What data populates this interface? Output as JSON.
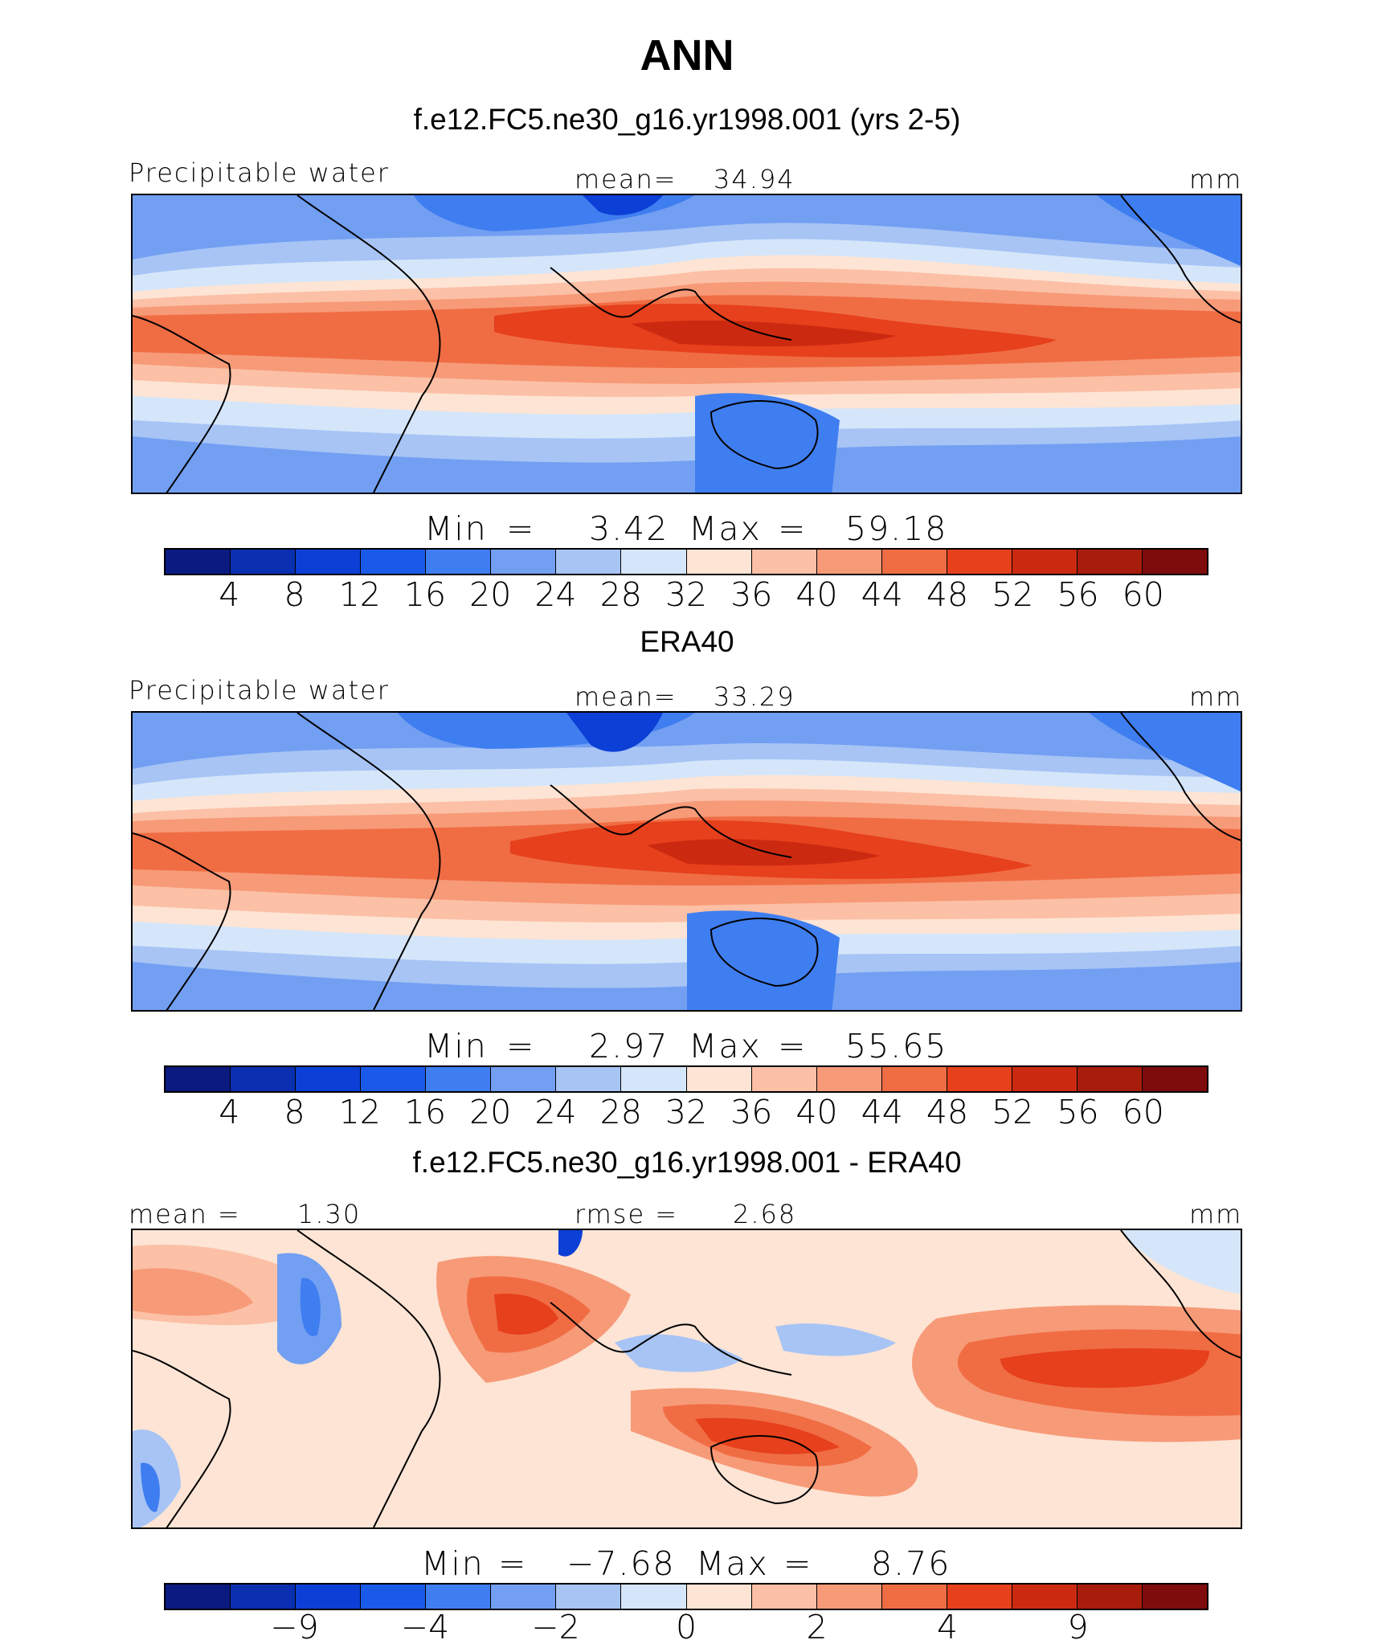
{
  "title": "ANN",
  "colors": {
    "full": [
      "#0a1a80",
      "#0a2fb0",
      "#0c3fd6",
      "#1a5ae8",
      "#3f7ef0",
      "#729ff2",
      "#a7c4f5",
      "#d5e6fa",
      "#fde4d4",
      "#fbc0a6",
      "#f79a78",
      "#f06d44",
      "#e6401c",
      "#cc2a10",
      "#a81c0c",
      "#7e0c0c"
    ],
    "diff": [
      "#0a1a80",
      "#0a2fb0",
      "#0c3fd6",
      "#1a5ae8",
      "#3f7ef0",
      "#729ff2",
      "#a7c4f5",
      "#d5e6fa",
      "#fde4d4",
      "#fbc0a6",
      "#f79a78",
      "#f06d44",
      "#e6401c",
      "#cc2a10",
      "#a81c0c",
      "#7e0c0c"
    ]
  },
  "panels": [
    {
      "title": "f.e12.FC5.ne30_g16.yr1998.001 (yrs 2-5)",
      "left_label": "Precipitable water",
      "mean_label": "mean=",
      "mean_value": "34.94",
      "units": "mm",
      "min_label": "Min",
      "min_value": "3.42",
      "max_label": "Max",
      "max_value": "59.18",
      "eq": "=",
      "colorbar_ticks": [
        "4",
        "8",
        "12",
        "16",
        "20",
        "24",
        "28",
        "32",
        "36",
        "40",
        "44",
        "48",
        "52",
        "56",
        "60"
      ]
    },
    {
      "title": "ERA40",
      "left_label": "Precipitable water",
      "mean_label": "mean=",
      "mean_value": "33.29",
      "units": "mm",
      "min_label": "Min",
      "min_value": "2.97",
      "max_label": "Max",
      "max_value": "55.65",
      "eq": "=",
      "colorbar_ticks": [
        "4",
        "8",
        "12",
        "16",
        "20",
        "24",
        "28",
        "32",
        "36",
        "40",
        "44",
        "48",
        "52",
        "56",
        "60"
      ]
    },
    {
      "title": "f.e12.FC5.ne30_g16.yr1998.001 - ERA40",
      "left_label": "mean =",
      "left_value": "1.30",
      "mean_label": "rmse =",
      "mean_value": "2.68",
      "units": "mm",
      "min_label": "Min",
      "min_value": "−7.68",
      "max_label": "Max",
      "max_value": "8.76",
      "eq": "=",
      "colorbar_ticks": [
        "−9",
        "−4",
        "−2",
        "0",
        "2",
        "4",
        "9"
      ]
    }
  ]
}
